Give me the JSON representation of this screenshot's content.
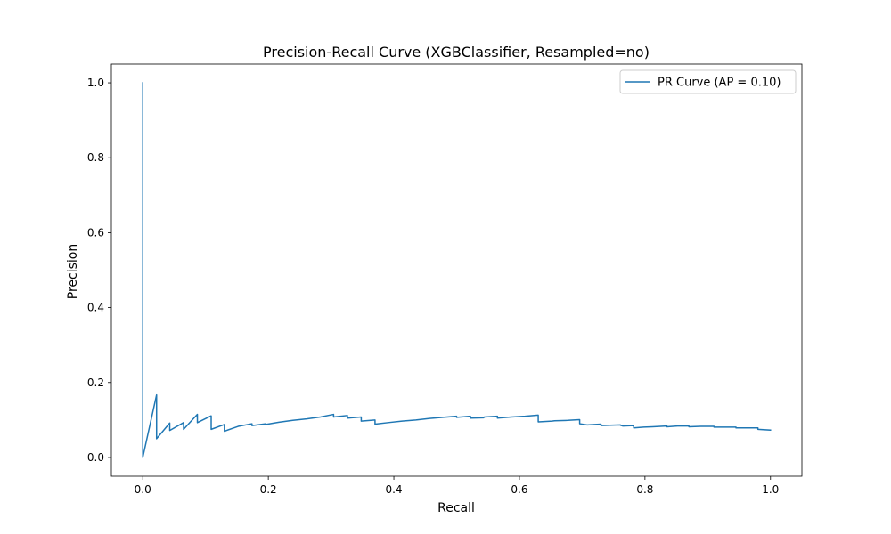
{
  "chart_data": {
    "type": "line",
    "title": "Precision-Recall Curve (XGBClassifier, Resampled=no)",
    "xlabel": "Recall",
    "ylabel": "Precision",
    "xlim": [
      -0.05,
      1.05
    ],
    "ylim": [
      -0.05,
      1.05
    ],
    "xticks": [
      0.0,
      0.2,
      0.4,
      0.6,
      0.8,
      1.0
    ],
    "xtick_labels": [
      "0.0",
      "0.2",
      "0.4",
      "0.6",
      "0.8",
      "1.0"
    ],
    "yticks": [
      0.0,
      0.2,
      0.4,
      0.6,
      0.8,
      1.0
    ],
    "ytick_labels": [
      "0.0",
      "0.2",
      "0.4",
      "0.6",
      "0.8",
      "1.0"
    ],
    "grid": false,
    "legend": "upper right",
    "series": [
      {
        "name": "PR Curve (AP = 0.10)",
        "color": "#1f77b4",
        "x": [
          1.0,
          0.98,
          0.98,
          0.962,
          0.945,
          0.945,
          0.924,
          0.91,
          0.91,
          0.889,
          0.87,
          0.87,
          0.852,
          0.835,
          0.835,
          0.812,
          0.798,
          0.782,
          0.782,
          0.765,
          0.761,
          0.761,
          0.744,
          0.73,
          0.73,
          0.708,
          0.696,
          0.696,
          0.677,
          0.656,
          0.652,
          0.63,
          0.63,
          0.609,
          0.587,
          0.565,
          0.565,
          0.544,
          0.543,
          0.522,
          0.522,
          0.5,
          0.5,
          0.478,
          0.457,
          0.435,
          0.413,
          0.391,
          0.37,
          0.37,
          0.348,
          0.348,
          0.326,
          0.326,
          0.304,
          0.304,
          0.283,
          0.261,
          0.239,
          0.217,
          0.196,
          0.196,
          0.174,
          0.174,
          0.152,
          0.13,
          0.13,
          0.109,
          0.109,
          0.087,
          0.087,
          0.065,
          0.065,
          0.043,
          0.043,
          0.022,
          0.022,
          0.0,
          0.0
        ],
        "y": [
          0.073,
          0.075,
          0.079,
          0.079,
          0.079,
          0.081,
          0.081,
          0.081,
          0.083,
          0.083,
          0.082,
          0.084,
          0.084,
          0.082,
          0.084,
          0.082,
          0.081,
          0.079,
          0.085,
          0.084,
          0.086,
          0.087,
          0.086,
          0.085,
          0.089,
          0.087,
          0.09,
          0.101,
          0.099,
          0.098,
          0.097,
          0.095,
          0.113,
          0.11,
          0.108,
          0.105,
          0.11,
          0.108,
          0.106,
          0.105,
          0.11,
          0.107,
          0.11,
          0.107,
          0.104,
          0.1,
          0.097,
          0.093,
          0.089,
          0.1,
          0.097,
          0.108,
          0.105,
          0.112,
          0.108,
          0.115,
          0.108,
          0.103,
          0.099,
          0.094,
          0.088,
          0.09,
          0.085,
          0.09,
          0.083,
          0.07,
          0.088,
          0.075,
          0.111,
          0.093,
          0.115,
          0.075,
          0.093,
          0.072,
          0.092,
          0.05,
          0.167,
          0.0,
          1.0
        ]
      }
    ]
  }
}
